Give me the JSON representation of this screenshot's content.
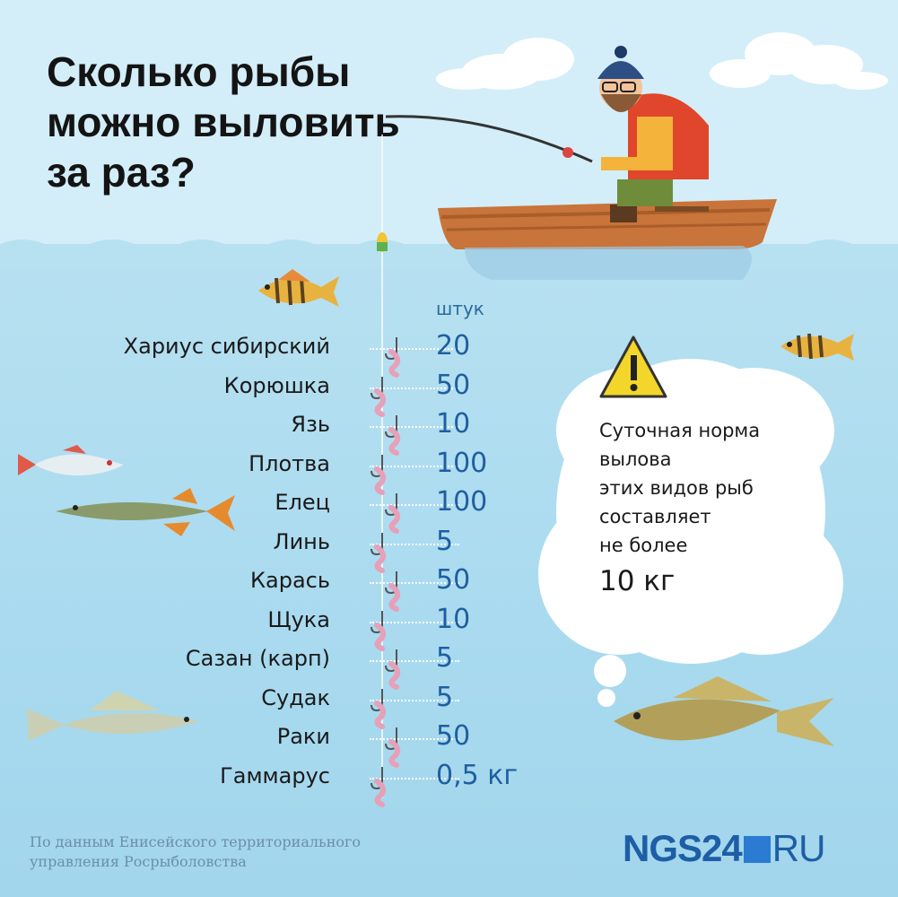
{
  "title": [
    "Сколько рыбы",
    "можно выловить",
    "за раз?"
  ],
  "unit_label": "штук",
  "items": [
    {
      "name": "Хариус сибирский",
      "value": "20"
    },
    {
      "name": "Корюшка",
      "value": "50"
    },
    {
      "name": "Язь",
      "value": "10"
    },
    {
      "name": "Плотва",
      "value": "100"
    },
    {
      "name": "Елец",
      "value": "100"
    },
    {
      "name": "Линь",
      "value": "5"
    },
    {
      "name": "Карась",
      "value": "50"
    },
    {
      "name": "Щука",
      "value": "10"
    },
    {
      "name": "Сазан (карп)",
      "value": "5"
    },
    {
      "name": "Судак",
      "value": "5"
    },
    {
      "name": "Раки",
      "value": "50"
    },
    {
      "name": "Гаммарус",
      "value": "0,5 кг"
    }
  ],
  "note": {
    "lines": [
      "Суточная норма",
      "вылова",
      "этих видов рыб",
      "составляет",
      "не более"
    ],
    "amount": "10 кг"
  },
  "source": [
    "По данным Енисейского территориального",
    "управления Росрыболовства"
  ],
  "logo": {
    "left": "NGS24",
    "right": "RU"
  },
  "icons": [
    "warning-icon",
    "fisherman",
    "boat",
    "perch-fish",
    "roach-fish",
    "pike-fish",
    "zander-fish",
    "carp-fish",
    "hook-worm-icon",
    "cloud-bubble"
  ],
  "colors": {
    "title": "#141414",
    "value": "#1f5fa0",
    "logo": "#1e5ea6",
    "water": "#a9daef",
    "sky": "#d3eef8"
  }
}
